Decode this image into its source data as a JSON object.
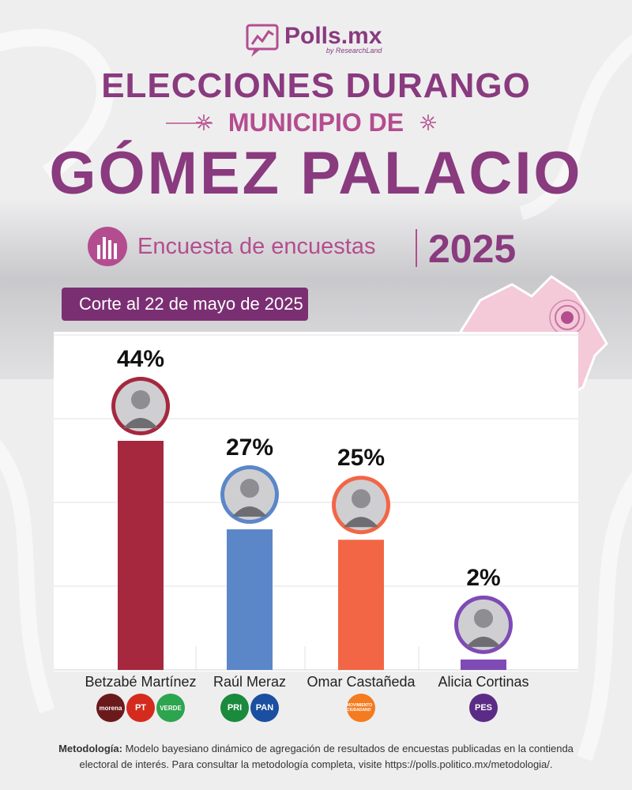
{
  "brand": {
    "name": "Polls.mx",
    "sub": "by ResearchLand"
  },
  "header": {
    "line1": "ELECCIONES DURANGO",
    "line2": "MUNICIPIO DE",
    "line3": "GÓMEZ PALACIO",
    "survey_label": "Encuesta de encuestas",
    "year": "2025",
    "cutoff": "Corte al 22 de mayo de 2025"
  },
  "colors": {
    "brand_purple": "#8a3a7e",
    "brand_pink": "#b44d8f",
    "cutoff_bg": "#7b2f73"
  },
  "chart_data": {
    "type": "bar",
    "categories": [
      "Betzabé Martínez",
      "Raúl Meraz",
      "Omar Castañeda",
      "Alicia Cortinas"
    ],
    "values": [
      44,
      27,
      25,
      2
    ],
    "labels": [
      "44%",
      "27%",
      "25%",
      "2%"
    ],
    "bar_colors": [
      "#a5283f",
      "#5b87c8",
      "#f26646",
      "#7e4bb6"
    ],
    "photo_rings": [
      "#a5283f",
      "#5b87c8",
      "#f26646",
      "#7e4bb6"
    ],
    "parties": [
      [
        "morena",
        "PT",
        "VERDE"
      ],
      [
        "PRI",
        "PAN"
      ],
      [
        "MOVIMIENTO CIUDADANO"
      ],
      [
        "PES"
      ]
    ],
    "party_colors": [
      [
        "#6b1a1c",
        "#d52b1e",
        "#2da44e"
      ],
      [
        "#1a8a3c",
        "#1b4fa0"
      ],
      [
        "#f47b20"
      ],
      [
        "#5b2c86"
      ]
    ],
    "ylim": [
      0,
      50
    ],
    "grid": true
  },
  "methodology": {
    "label": "Metodología:",
    "text": " Modelo bayesiano dinámico de agregación de resultados de encuestas publicadas en la contienda electoral de interés. Para consultar la metodología completa, visite https://polls.politico.mx/metodologia/."
  }
}
